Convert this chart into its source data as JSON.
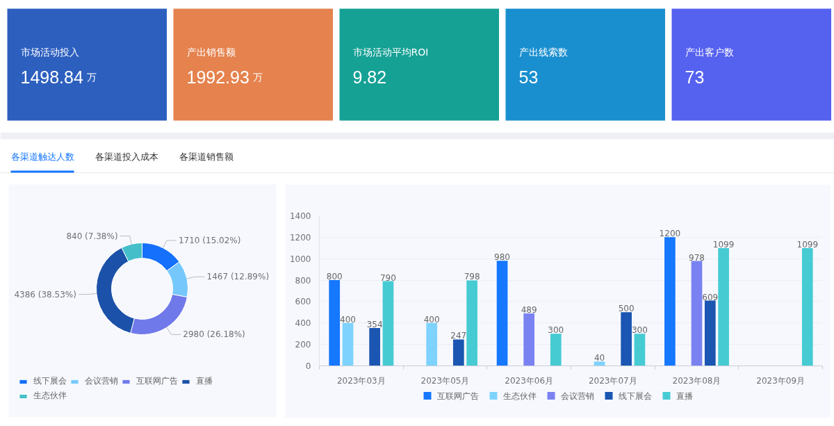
{
  "chart_data": [
    {
      "type": "other",
      "title": "市场活动投入",
      "annotations": [
        "1498.84",
        "万"
      ],
      "color": "#2d5fbf"
    },
    {
      "type": "other",
      "title": "产出销售额",
      "annotations": [
        "1992.93",
        "万"
      ],
      "color": "#e5824e"
    },
    {
      "type": "other",
      "title": "市场活动平均ROI",
      "annotations": [
        "9.82"
      ],
      "color": "#16a195"
    },
    {
      "type": "other",
      "title": "产出线索数",
      "annotations": [
        "53"
      ],
      "color": "#1a8fcf"
    },
    {
      "type": "other",
      "title": "产出客户数",
      "annotations": [
        "73"
      ],
      "color": "#5561ef"
    },
    {
      "type": "other",
      "annotations": [
        "各渠道触达人数",
        "各渠道投入成本",
        "各渠道销售额"
      ]
    },
    {
      "type": "donut",
      "categories": [
        "线下展会",
        "会议营销",
        "互联网广告",
        "直播",
        "生态伙伴"
      ],
      "values": [
        1710,
        1467,
        2980,
        4386,
        840
      ],
      "colors": [
        "#1570fb",
        "#76c8fc",
        "#7079ea",
        "#1b51a8",
        "#44bfc9"
      ],
      "value_labels": [
        "1710 (15.02%)",
        "1467 (12.89%)",
        "2980 (26.18%)",
        "4386 (38.53%)",
        "840 (7.38%)"
      ],
      "legend": "bottom"
    },
    {
      "type": "bar",
      "categories": [
        "2023年03月",
        "2023年05月",
        "2023年06月",
        "2023年07月",
        "2023年08月",
        "2023年09月"
      ],
      "series": [
        {
          "name": "互联网广告",
          "color": "#1677ff",
          "values": [
            800,
            null,
            980,
            null,
            1200,
            null
          ]
        },
        {
          "name": "生态伙伴",
          "color": "#7dd3fd",
          "values": [
            400,
            400,
            null,
            40,
            null,
            null
          ]
        },
        {
          "name": "会议营销",
          "color": "#7a82f2",
          "values": [
            null,
            null,
            489,
            null,
            978,
            null
          ]
        },
        {
          "name": "线下展会",
          "color": "#1a56b2",
          "values": [
            354,
            247,
            null,
            500,
            609,
            null
          ]
        },
        {
          "name": "直播",
          "color": "#46cbd3",
          "values": [
            790,
            798,
            300,
            300,
            1099,
            1099
          ]
        }
      ],
      "ylim": [
        0,
        1400
      ],
      "yticks": [
        0,
        200,
        400,
        600,
        800,
        1000,
        1200,
        1400
      ],
      "grid": "y",
      "data_labels": true,
      "legend": "bottom"
    }
  ]
}
